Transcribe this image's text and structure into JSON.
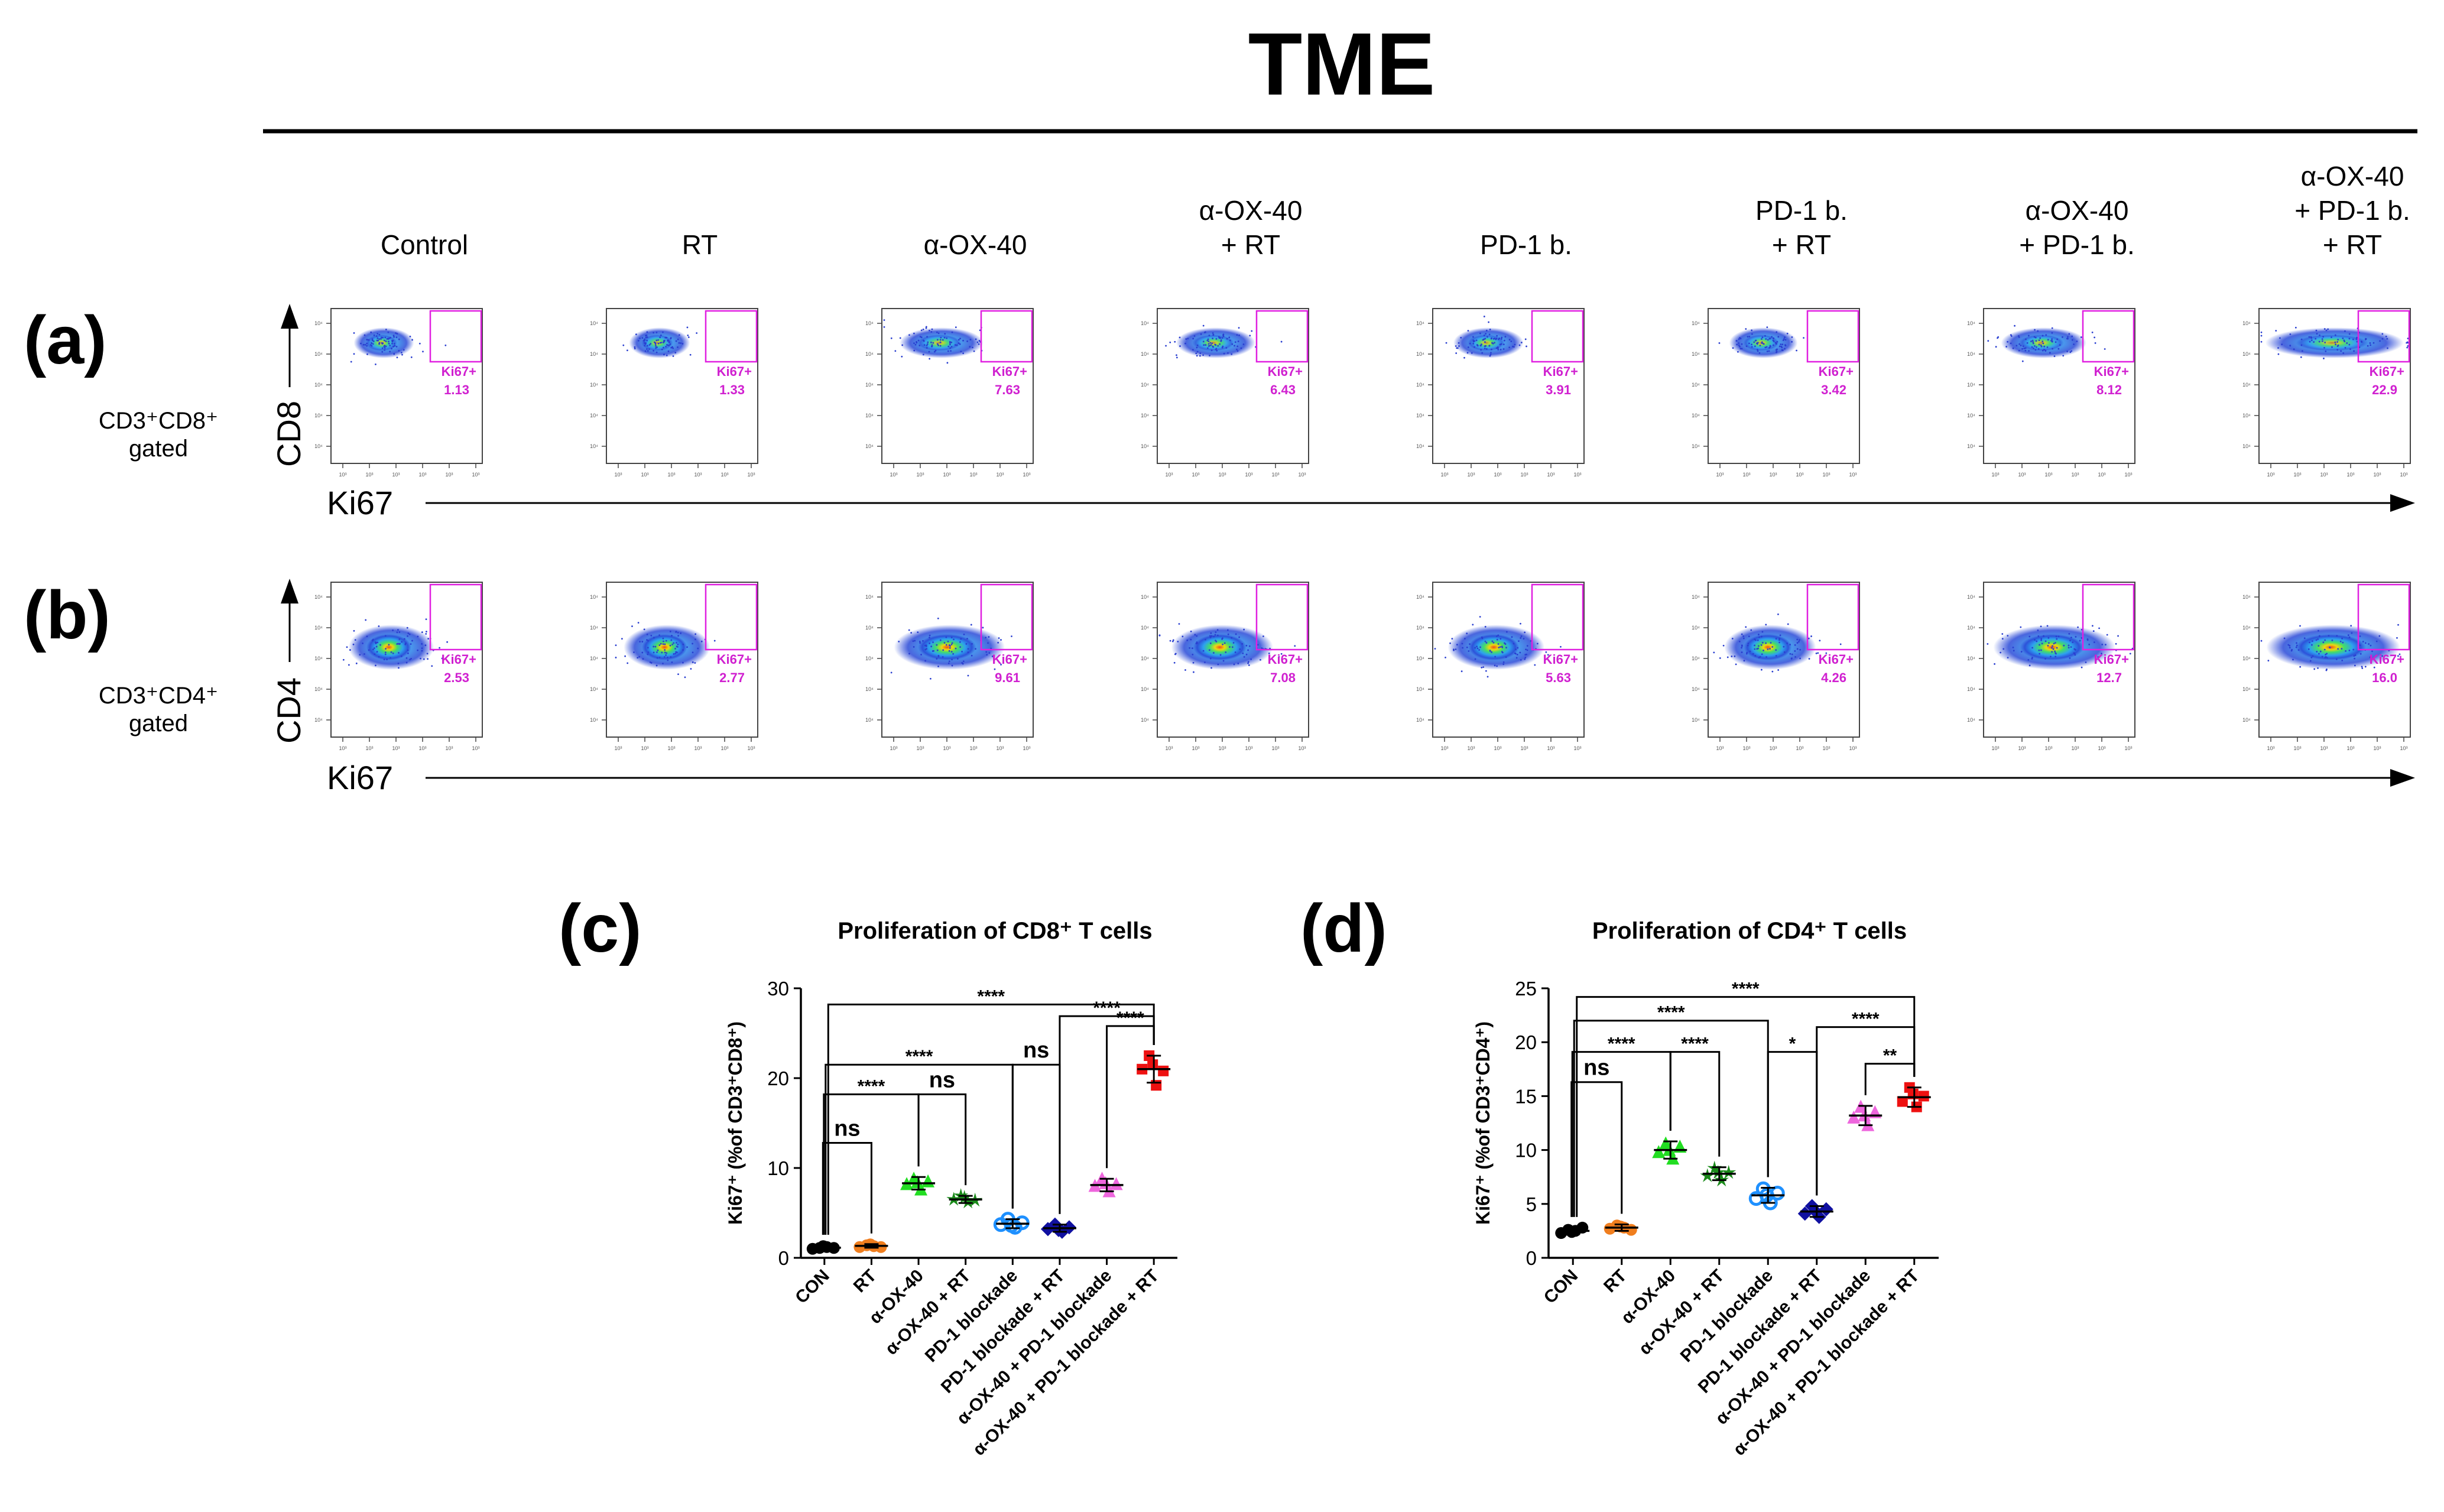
{
  "figure_title": "TME",
  "panel_labels": {
    "a": "(a)",
    "b": "(b)",
    "c": "(c)",
    "d": "(d)"
  },
  "flow": {
    "columns": [
      {
        "lines": [
          "Control"
        ]
      },
      {
        "lines": [
          "RT"
        ]
      },
      {
        "lines": [
          "α-OX-40"
        ]
      },
      {
        "lines": [
          "α-OX-40",
          "+ RT"
        ]
      },
      {
        "lines": [
          "PD-1 b."
        ]
      },
      {
        "lines": [
          "PD-1 b.",
          "+ RT"
        ]
      },
      {
        "lines": [
          "α-OX-40",
          "+ PD-1 b."
        ]
      },
      {
        "lines": [
          "α-OX-40",
          "+ PD-1 b.",
          "+ RT"
        ]
      }
    ],
    "rows": [
      {
        "gate_line1": "CD3⁺CD8⁺",
        "gate_line2": "gated",
        "y_marker": "CD8",
        "x_marker": "Ki67",
        "gate_label": "Ki67+",
        "values": [
          "1.13",
          "1.33",
          "7.63",
          "6.43",
          "3.91",
          "3.42",
          "8.12",
          "22.9"
        ]
      },
      {
        "gate_line1": "CD3⁺CD4⁺",
        "gate_line2": "gated",
        "y_marker": "CD4",
        "x_marker": "Ki67",
        "gate_label": "Ki67+",
        "values": [
          "2.53",
          "2.77",
          "9.61",
          "7.08",
          "5.63",
          "4.26",
          "12.7",
          "16.0"
        ]
      }
    ],
    "colors": {
      "gate": "#e020e0",
      "gate_text": "#d020d0"
    }
  },
  "chart_data": [
    {
      "type": "scatter",
      "title": "Proliferation of CD8⁺ T cells",
      "ylabel": "Ki67⁺ (%of CD3⁺CD8⁺)",
      "ylim": [
        0,
        30
      ],
      "yticks": [
        "0",
        "10",
        "20",
        "30"
      ],
      "categories": [
        "CON",
        "RT",
        "α-OX-40",
        "α-OX-40 + RT",
        "PD-1 blockade",
        "PD-1 blockade + RT",
        "α-OX-40 + PD-1 blockade",
        "α-OX-40 + PD-1 blockade + RT"
      ],
      "colors": [
        "#000000",
        "#f07e1e",
        "#22dd22",
        "#1a8a1a",
        "#1e90ff",
        "#1010a0",
        "#ee66dd",
        "#ee1111"
      ],
      "markers": [
        "circle",
        "circle",
        "triangle",
        "star",
        "ring",
        "diamond",
        "triangle",
        "square"
      ],
      "means": [
        1.13,
        1.33,
        8.3,
        6.5,
        3.8,
        3.3,
        8.1,
        21.0
      ],
      "sds": [
        0.25,
        0.2,
        0.7,
        0.4,
        0.5,
        0.4,
        0.7,
        1.5
      ],
      "points": [
        [
          1.0,
          1.1,
          1.2,
          1.1,
          1.3
        ],
        [
          1.2,
          1.4,
          1.3,
          1.2,
          1.5
        ],
        [
          8.2,
          8.8,
          7.6,
          8.5,
          8.4
        ],
        [
          6.5,
          6.9,
          6.2,
          6.4,
          6.7
        ],
        [
          3.7,
          4.3,
          3.4,
          3.9,
          3.6
        ],
        [
          3.2,
          3.7,
          2.9,
          3.4,
          3.1
        ],
        [
          8.0,
          8.8,
          7.4,
          8.2,
          8.3
        ],
        [
          21.0,
          22.5,
          19.2,
          20.8,
          21.5
        ]
      ],
      "comparisons": [
        {
          "from": 0,
          "to": 1,
          "label": "ns",
          "y": 12.8
        },
        {
          "from": 0,
          "to": 2,
          "label": "****",
          "y": 18.2
        },
        {
          "from": 2,
          "to": 3,
          "label": "ns",
          "y": 18.2
        },
        {
          "from": 0,
          "to": 4,
          "label": "****",
          "y": 21.5
        },
        {
          "from": 4,
          "to": 5,
          "label": "ns",
          "y": 21.5
        },
        {
          "from": 6,
          "to": 7,
          "label": "****",
          "y": 25.8
        },
        {
          "from": 5,
          "to": 7,
          "label": "****",
          "y": 26.9
        },
        {
          "from": 0,
          "to": 7,
          "label": "****",
          "y": 28.2
        }
      ]
    },
    {
      "type": "scatter",
      "title": "Proliferation of CD4⁺ T cells",
      "ylabel": "Ki67⁺ (%of CD3⁺CD4⁺)",
      "ylim": [
        0,
        25
      ],
      "yticks": [
        "0",
        "5",
        "10",
        "15",
        "20",
        "25"
      ],
      "categories": [
        "CON",
        "RT",
        "α-OX-40",
        "α-OX-40 + RT",
        "PD-1 blockade",
        "PD-1 blockade + RT",
        "α-OX-40 + PD-1 blockade",
        "α-OX-40 + PD-1 blockade + RT"
      ],
      "colors": [
        "#000000",
        "#f07e1e",
        "#22dd22",
        "#1a8a1a",
        "#1e90ff",
        "#1010a0",
        "#ee66dd",
        "#ee1111"
      ],
      "markers": [
        "circle",
        "circle",
        "triangle",
        "star",
        "ring",
        "diamond",
        "triangle",
        "square"
      ],
      "means": [
        2.5,
        2.8,
        10.0,
        7.8,
        5.8,
        4.3,
        13.2,
        14.9
      ],
      "sds": [
        0.3,
        0.3,
        0.8,
        0.6,
        0.7,
        0.5,
        0.9,
        0.9
      ],
      "points": [
        [
          2.3,
          2.6,
          2.5,
          2.8,
          2.4
        ],
        [
          2.7,
          3.0,
          2.8,
          2.6,
          2.9
        ],
        [
          9.8,
          10.6,
          9.2,
          10.3,
          10.0
        ],
        [
          7.6,
          8.3,
          7.2,
          7.9,
          7.9
        ],
        [
          5.5,
          6.4,
          5.1,
          6.0,
          5.8
        ],
        [
          4.1,
          4.8,
          3.8,
          4.5,
          4.3
        ],
        [
          13.0,
          14.0,
          12.3,
          13.5,
          13.2
        ],
        [
          14.5,
          15.8,
          14.0,
          15.0,
          15.2
        ]
      ],
      "comparisons": [
        {
          "from": 0,
          "to": 1,
          "label": "ns",
          "y": 16.3
        },
        {
          "from": 0,
          "to": 2,
          "label": "****",
          "y": 19.1
        },
        {
          "from": 2,
          "to": 3,
          "label": "****",
          "y": 19.1
        },
        {
          "from": 4,
          "to": 5,
          "label": "*",
          "y": 19.1
        },
        {
          "from": 0,
          "to": 4,
          "label": "****",
          "y": 22.0
        },
        {
          "from": 6,
          "to": 7,
          "label": "**",
          "y": 18.0
        },
        {
          "from": 5,
          "to": 7,
          "label": "****",
          "y": 21.4
        },
        {
          "from": 0,
          "to": 7,
          "label": "****",
          "y": 24.2
        }
      ]
    }
  ]
}
